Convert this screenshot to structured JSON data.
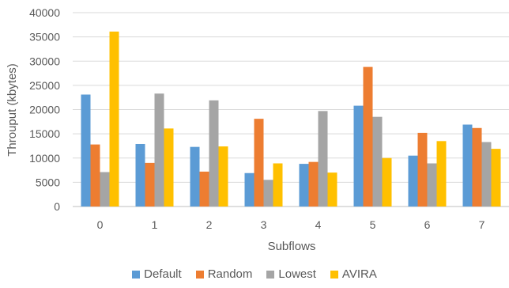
{
  "chart_data": {
    "type": "bar",
    "title": "",
    "xlabel": "Subflows",
    "ylabel": "Throuput  (kbytes)",
    "categories": [
      "0",
      "1",
      "2",
      "3",
      "4",
      "5",
      "6",
      "7"
    ],
    "ylim": [
      0,
      40000
    ],
    "yticks": [
      0,
      5000,
      10000,
      15000,
      20000,
      25000,
      30000,
      35000,
      40000
    ],
    "ytick_labels": [
      "0",
      "5000",
      "10000",
      "15000",
      "20000",
      "25000",
      "30000",
      "35000",
      "40000"
    ],
    "grid": true,
    "legend_position": "bottom",
    "series": [
      {
        "name": "Default",
        "color": "#5B9BD5",
        "values": [
          23100,
          12900,
          12300,
          6900,
          8800,
          20800,
          10500,
          16900
        ]
      },
      {
        "name": "Random",
        "color": "#ED7D31",
        "values": [
          12800,
          9000,
          7200,
          18100,
          9200,
          28800,
          15200,
          16200
        ]
      },
      {
        "name": "Lowest",
        "color": "#A5A5A5",
        "values": [
          7100,
          23300,
          21900,
          5500,
          19700,
          18500,
          8900,
          13300
        ]
      },
      {
        "name": "AVIRA",
        "color": "#FFC000",
        "values": [
          36100,
          16100,
          12400,
          8900,
          7000,
          10000,
          13500,
          11900
        ]
      }
    ]
  }
}
